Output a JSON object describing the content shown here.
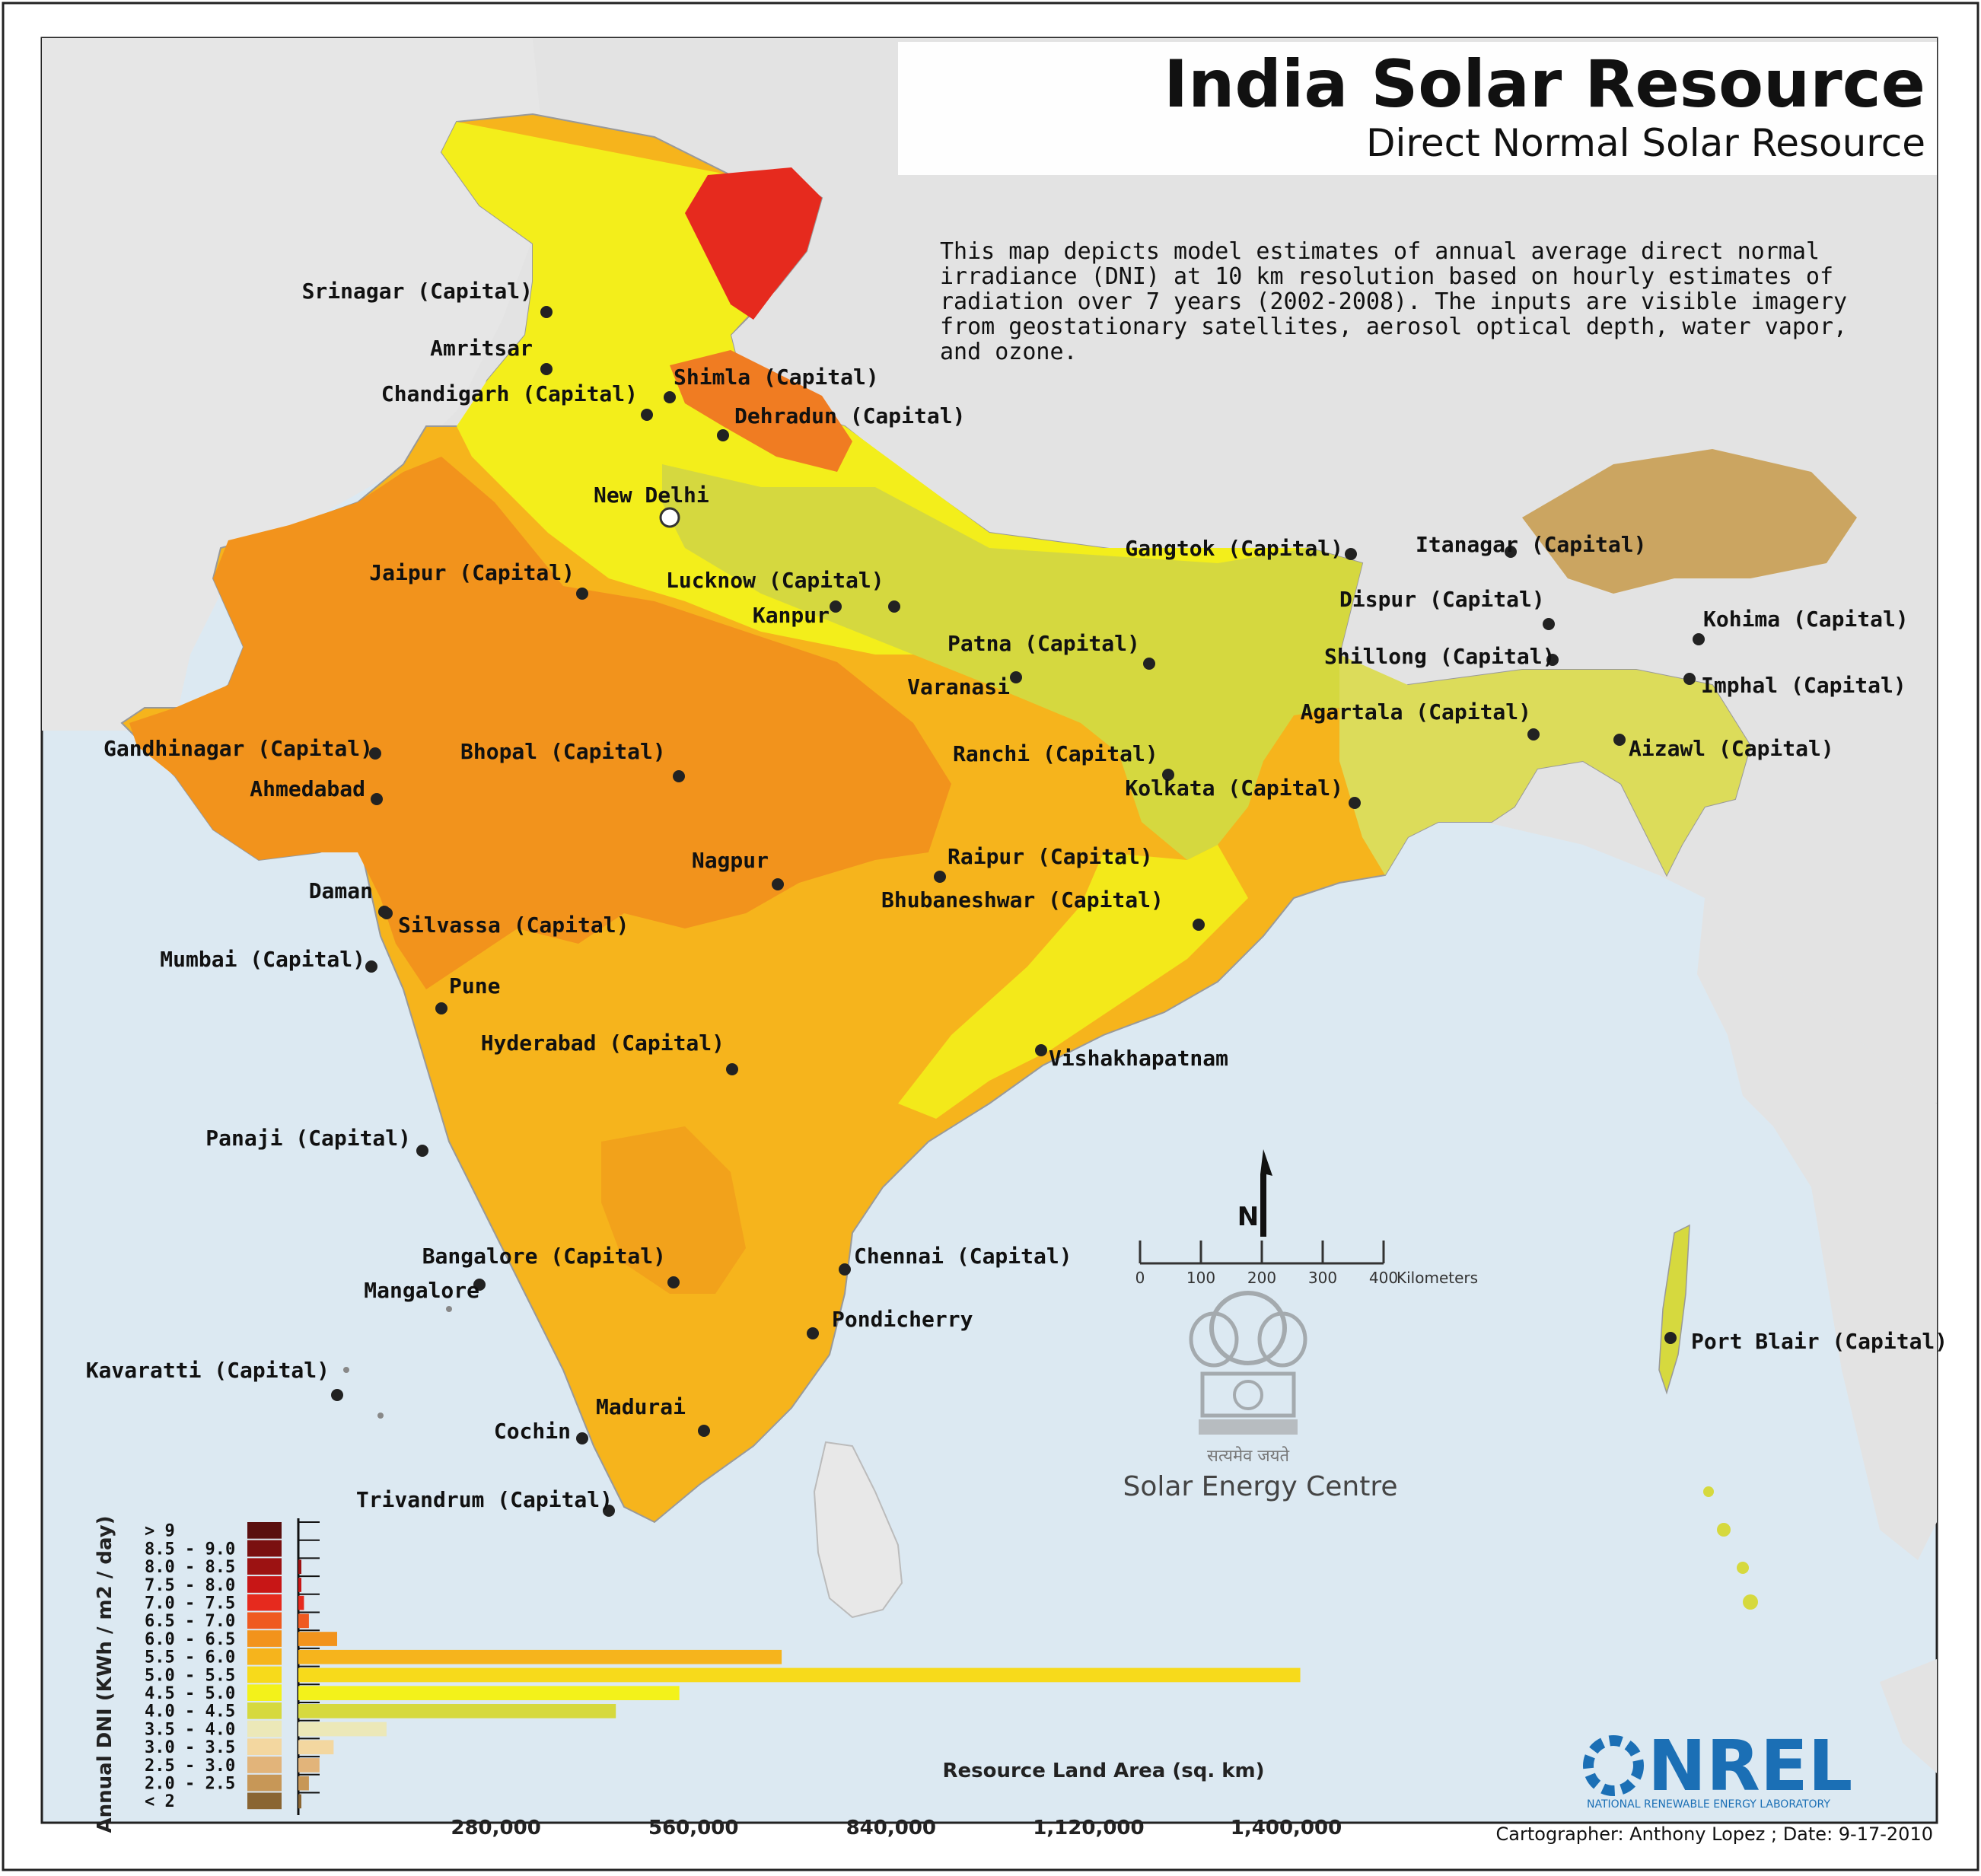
{
  "title": "India Solar Resource",
  "subtitle": "Direct Normal Solar Resource",
  "description_lines": [
    "This map depicts model estimates of annual average direct normal",
    "irradiance (DNI) at 10 km resolution based on hourly estimates of",
    "radiation over 7 years (2002-2008).  The inputs are visible imagery",
    "from geostationary satellites, aerosol optical depth, water vapor,",
    "and ozone."
  ],
  "north_arrow_label": "N",
  "scale_bar": {
    "ticks": [
      "0",
      "100",
      "200",
      "300",
      "400"
    ],
    "unit": "Kilometers"
  },
  "emblem_motto": "सत्यमेव जयते",
  "emblem_caption": "Solar Energy Centre",
  "logo_text": "NREL",
  "logo_subtext": "NATIONAL RENEWABLE ENERGY LABORATORY",
  "credit": "Cartographer: Anthony Lopez ; Date: 9-17-2010",
  "colors": {
    "ocean": "#dce9f2",
    "land_neighbor": "#e4e4e4",
    "class_orange": "#f2931c",
    "class_amber": "#f6b41c",
    "class_yellow": "#f3e51b",
    "class_olive": "#d6d93e",
    "class_red": "#e62a1e"
  },
  "cities": [
    {
      "label": "Srinagar (Capital)"
    },
    {
      "label": "Amritsar"
    },
    {
      "label": "Chandigarh (Capital)"
    },
    {
      "label": "Shimla (Capital)"
    },
    {
      "label": "Dehradun (Capital)"
    },
    {
      "label": "New Delhi"
    },
    {
      "label": "Jaipur (Capital)"
    },
    {
      "label": "Lucknow (Capital)"
    },
    {
      "label": "Kanpur"
    },
    {
      "label": "Patna (Capital)"
    },
    {
      "label": "Varanasi"
    },
    {
      "label": "Gangtok (Capital)"
    },
    {
      "label": "Itanagar (Capital)"
    },
    {
      "label": "Dispur (Capital)"
    },
    {
      "label": "Kohima (Capital)"
    },
    {
      "label": "Shillong (Capital)"
    },
    {
      "label": "Imphal (Capital)"
    },
    {
      "label": "Agartala (Capital)"
    },
    {
      "label": "Aizawl (Capital)"
    },
    {
      "label": "Gandhinagar (Capital)"
    },
    {
      "label": "Ahmedabad"
    },
    {
      "label": "Bhopal (Capital)"
    },
    {
      "label": "Ranchi (Capital)"
    },
    {
      "label": "Kolkata (Capital)"
    },
    {
      "label": "Nagpur"
    },
    {
      "label": "Raipur (Capital)"
    },
    {
      "label": "Daman"
    },
    {
      "label": "Bhubaneshwar (Capital)"
    },
    {
      "label": "Silvassa (Capital)"
    },
    {
      "label": "Mumbai (Capital)"
    },
    {
      "label": "Pune"
    },
    {
      "label": "Hyderabad (Capital)"
    },
    {
      "label": "Vishakhapatnam"
    },
    {
      "label": "Panaji (Capital)"
    },
    {
      "label": "Bangalore (Capital)"
    },
    {
      "label": "Chennai (Capital)"
    },
    {
      "label": "Mangalore"
    },
    {
      "label": "Pondicherry"
    },
    {
      "label": "Kavaratti (Capital)"
    },
    {
      "label": "Madurai"
    },
    {
      "label": "Cochin"
    },
    {
      "label": "Trivandrum (Capital)"
    },
    {
      "label": "Port Blair (Capital)"
    }
  ],
  "chart_data": {
    "type": "bar",
    "orientation": "horizontal",
    "ylabel": "Annual DNI (KWh / m2 / day)",
    "xlabel": "Resource Land Area (sq. km)",
    "xlim": [
      0,
      1400000
    ],
    "x_tick_labels": [
      "280,000",
      "560,000",
      "840,000",
      "1,120,000",
      "1,400,000"
    ],
    "x_tick_values": [
      280000,
      560000,
      840000,
      1120000,
      1400000
    ],
    "categories": [
      "> 9",
      "8.5 - 9.0",
      "8.0 - 8.5",
      "7.5 - 8.0",
      "7.0 - 7.5",
      "6.5 - 7.0",
      "6.0 - 6.5",
      "5.5 - 6.0",
      "5.0 - 5.5",
      "4.5 - 5.0",
      "4.0 - 4.5",
      "3.5 - 4.0",
      "3.0 - 3.5",
      "2.5 - 3.0",
      "2.0 - 2.5",
      "< 2"
    ],
    "values": [
      0,
      0,
      1000,
      4000,
      8000,
      15000,
      55000,
      685000,
      1420000,
      540000,
      450000,
      125000,
      50000,
      30000,
      15000,
      3000
    ],
    "colors": [
      "#5a0f0f",
      "#7a1010",
      "#9c1212",
      "#c81616",
      "#e62a1e",
      "#ef5a20",
      "#f2931c",
      "#f6b41c",
      "#f7da1b",
      "#f3f21a",
      "#d6d93e",
      "#ece8b8",
      "#f3d7a0",
      "#e2b47a",
      "#c79757",
      "#8a6532"
    ]
  }
}
